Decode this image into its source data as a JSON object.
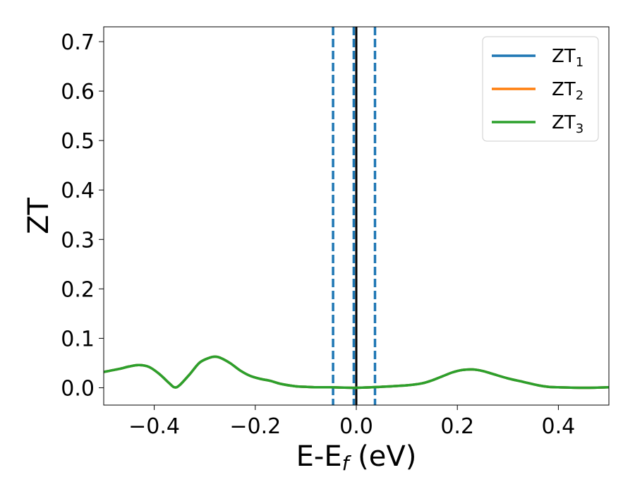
{
  "chart_data": {
    "type": "line",
    "title": "",
    "xlabel": "E-E",
    "xlabel_sub": "f",
    "xlabel_unit": " (eV)",
    "ylabel": "ZT",
    "xlim": [
      -0.5,
      0.5
    ],
    "ylim": [
      -0.035,
      0.73
    ],
    "x_ticks": [
      -0.4,
      -0.2,
      0.0,
      0.2,
      0.4
    ],
    "x_tick_labels": [
      "−0.4",
      "−0.2",
      "0.0",
      "0.2",
      "0.4"
    ],
    "y_ticks": [
      0.0,
      0.1,
      0.2,
      0.3,
      0.4,
      0.5,
      0.6,
      0.7
    ],
    "y_tick_labels": [
      "0.0",
      "0.1",
      "0.2",
      "0.3",
      "0.4",
      "0.5",
      "0.6",
      "0.7"
    ],
    "grid": false,
    "legend_position": "top-right",
    "series": [
      {
        "name": "ZT",
        "name_sub": "1",
        "color": "#1f77b4",
        "x": [
          -0.5,
          -0.47,
          -0.45,
          -0.43,
          -0.41,
          -0.39,
          -0.37,
          -0.36,
          -0.35,
          -0.33,
          -0.31,
          -0.29,
          -0.28,
          -0.27,
          -0.25,
          -0.23,
          -0.21,
          -0.19,
          -0.17,
          -0.15,
          -0.12,
          -0.1,
          -0.08,
          -0.05,
          0.0,
          0.05,
          0.1,
          0.13,
          0.15,
          0.17,
          0.19,
          0.21,
          0.23,
          0.25,
          0.27,
          0.3,
          0.33,
          0.36,
          0.38,
          0.4,
          0.45,
          0.5
        ],
        "y": [
          0.032,
          0.038,
          0.043,
          0.046,
          0.042,
          0.028,
          0.009,
          0.001,
          0.005,
          0.027,
          0.051,
          0.061,
          0.063,
          0.061,
          0.05,
          0.035,
          0.024,
          0.018,
          0.014,
          0.008,
          0.003,
          0.002,
          0.001,
          0.001,
          0.0,
          0.002,
          0.005,
          0.009,
          0.015,
          0.023,
          0.031,
          0.036,
          0.037,
          0.034,
          0.028,
          0.019,
          0.012,
          0.005,
          0.002,
          0.001,
          0.0,
          0.001
        ]
      },
      {
        "name": "ZT",
        "name_sub": "2",
        "color": "#ff7f0e",
        "x": [
          -0.5,
          -0.47,
          -0.45,
          -0.43,
          -0.41,
          -0.39,
          -0.37,
          -0.36,
          -0.35,
          -0.33,
          -0.31,
          -0.29,
          -0.28,
          -0.27,
          -0.25,
          -0.23,
          -0.21,
          -0.19,
          -0.17,
          -0.15,
          -0.12,
          -0.1,
          -0.08,
          -0.05,
          0.0,
          0.05,
          0.1,
          0.13,
          0.15,
          0.17,
          0.19,
          0.21,
          0.23,
          0.25,
          0.27,
          0.3,
          0.33,
          0.36,
          0.38,
          0.4,
          0.45,
          0.5
        ],
        "y": [
          0.032,
          0.038,
          0.043,
          0.046,
          0.042,
          0.028,
          0.009,
          0.001,
          0.005,
          0.027,
          0.051,
          0.061,
          0.063,
          0.061,
          0.05,
          0.035,
          0.024,
          0.018,
          0.014,
          0.008,
          0.003,
          0.002,
          0.001,
          0.001,
          0.0,
          0.002,
          0.005,
          0.009,
          0.015,
          0.023,
          0.031,
          0.036,
          0.037,
          0.034,
          0.028,
          0.019,
          0.012,
          0.005,
          0.002,
          0.001,
          0.0,
          0.001
        ]
      },
      {
        "name": "ZT",
        "name_sub": "3",
        "color": "#2ca02c",
        "x": [
          -0.5,
          -0.47,
          -0.45,
          -0.43,
          -0.41,
          -0.39,
          -0.37,
          -0.36,
          -0.35,
          -0.33,
          -0.31,
          -0.29,
          -0.28,
          -0.27,
          -0.25,
          -0.23,
          -0.21,
          -0.19,
          -0.17,
          -0.15,
          -0.12,
          -0.1,
          -0.08,
          -0.05,
          0.0,
          0.05,
          0.1,
          0.13,
          0.15,
          0.17,
          0.19,
          0.21,
          0.23,
          0.25,
          0.27,
          0.3,
          0.33,
          0.36,
          0.38,
          0.4,
          0.45,
          0.5
        ],
        "y": [
          0.032,
          0.038,
          0.043,
          0.046,
          0.042,
          0.028,
          0.009,
          0.001,
          0.005,
          0.027,
          0.051,
          0.061,
          0.063,
          0.061,
          0.05,
          0.035,
          0.024,
          0.018,
          0.014,
          0.008,
          0.003,
          0.002,
          0.001,
          0.001,
          0.0,
          0.002,
          0.005,
          0.009,
          0.015,
          0.023,
          0.031,
          0.036,
          0.037,
          0.034,
          0.028,
          0.019,
          0.012,
          0.005,
          0.002,
          0.001,
          0.0,
          0.001
        ]
      }
    ],
    "vertical_lines": [
      {
        "x": -0.046,
        "style": "dashed",
        "color": "#1f77b4"
      },
      {
        "x": -0.005,
        "style": "dashed",
        "color": "#1f77b4"
      },
      {
        "x": 0.037,
        "style": "dashed",
        "color": "#1f77b4"
      },
      {
        "x": 0.0,
        "style": "solid",
        "color": "#000000"
      }
    ]
  }
}
